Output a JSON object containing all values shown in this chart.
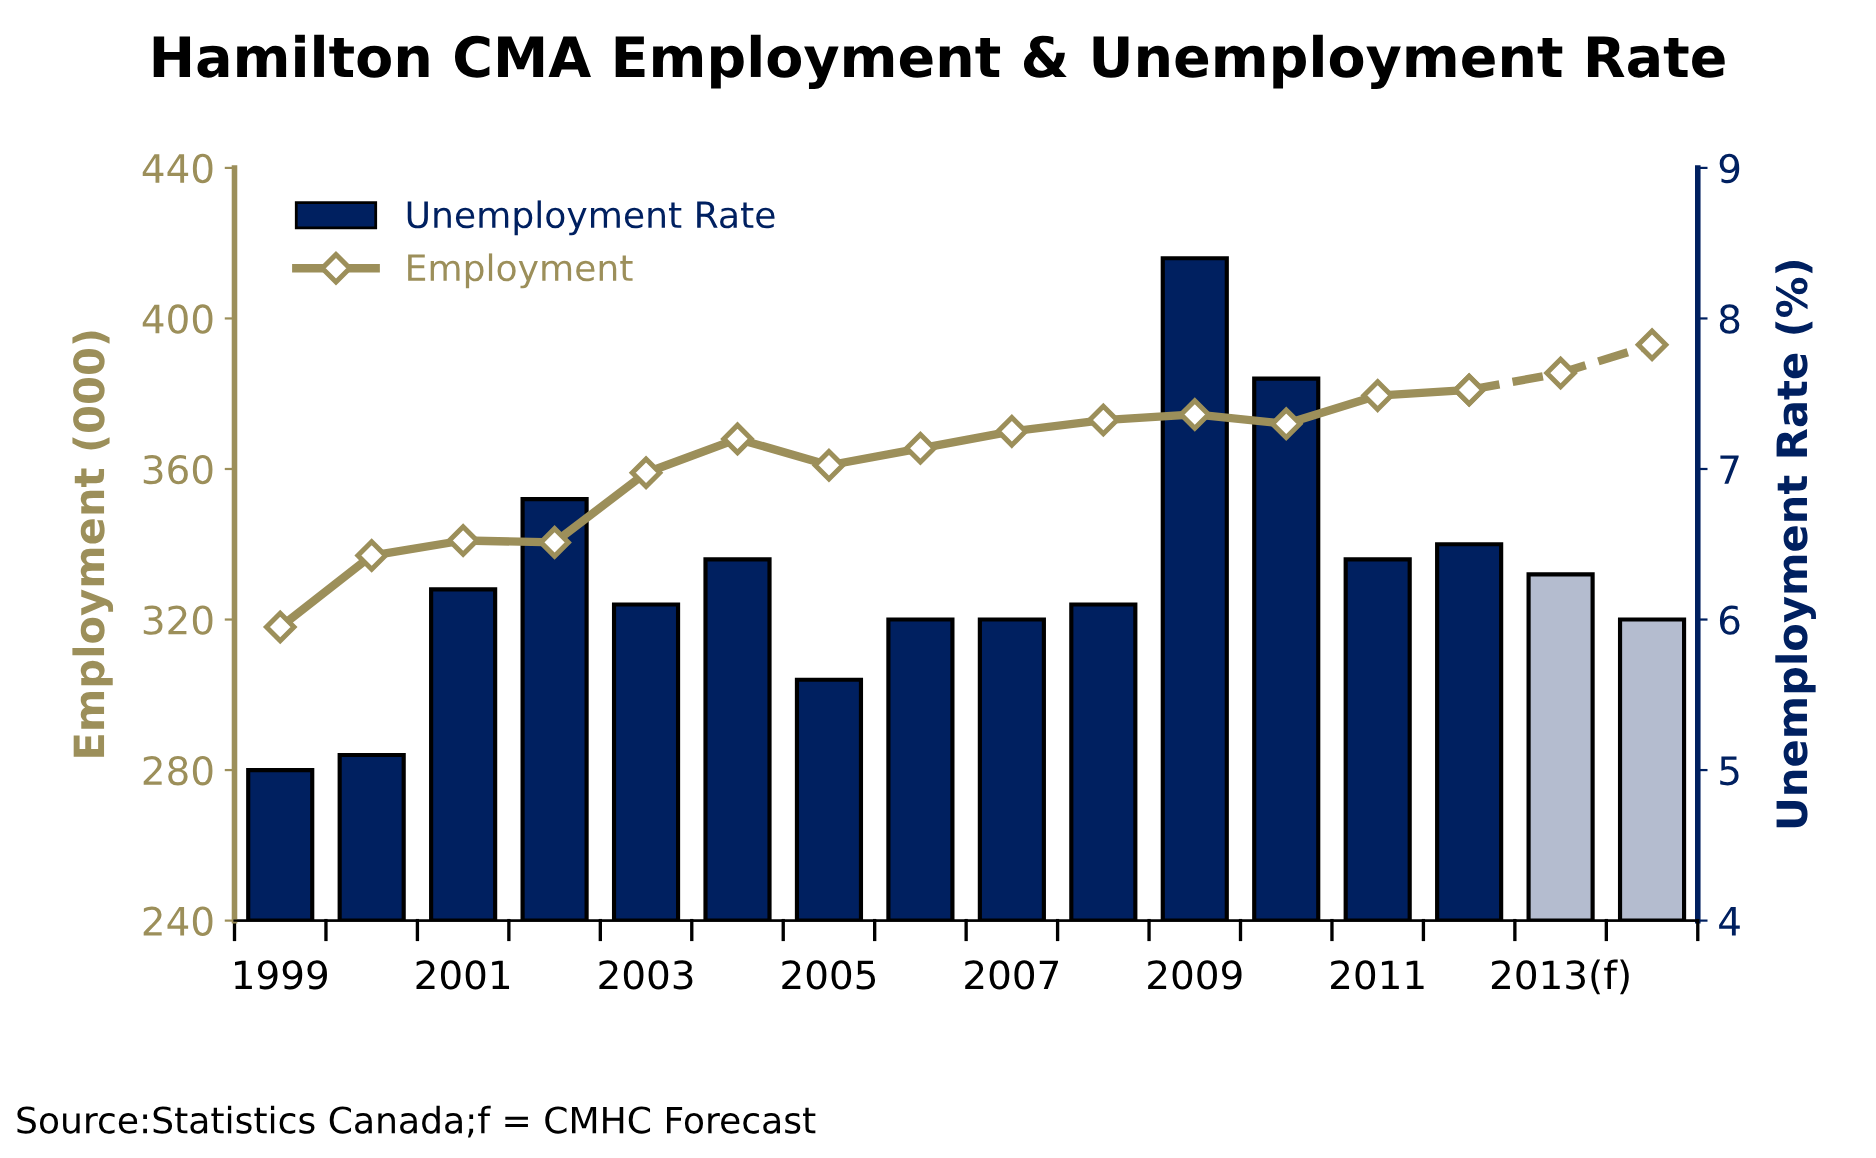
{
  "chart_data": {
    "type": "bar",
    "title": "Hamilton CMA Employment & Unemployment Rate",
    "categories": [
      "1999",
      null,
      "2001",
      null,
      "2003",
      null,
      "2005",
      null,
      "2007",
      null,
      "2009",
      null,
      "2011",
      null,
      "2013(f)",
      null
    ],
    "series": [
      {
        "name": "Unemployment Rate",
        "axis": "y2",
        "color": "#002060",
        "colors": [
          "#002060",
          "#002060",
          "#002060",
          "#002060",
          "#002060",
          "#002060",
          "#002060",
          "#002060",
          "#002060",
          "#002060",
          "#002060",
          "#002060",
          "#002060",
          "#002060",
          "#b4bccf",
          "#b4bccf"
        ],
        "values": [
          5.0,
          5.1,
          6.2,
          6.8,
          6.1,
          6.4,
          5.6,
          6.0,
          6.0,
          6.1,
          8.4,
          7.6,
          6.4,
          6.5,
          6.3,
          6.0
        ]
      },
      {
        "name": "Employment",
        "type": "line",
        "axis": "y",
        "color": "#9c8f5a",
        "marker": "diamond",
        "line_style": "solid",
        "values": [
          318,
          337,
          341,
          340.5,
          359,
          368,
          361,
          365.5,
          370,
          373,
          374.5,
          372,
          379.5,
          381,
          null,
          null
        ]
      },
      {
        "type": "line",
        "axis": "y",
        "color": "#9c8f5a",
        "marker": "diamond",
        "line_style": "dashed",
        "values": [
          null,
          null,
          null,
          null,
          null,
          null,
          null,
          null,
          null,
          null,
          null,
          null,
          null,
          381,
          385.5,
          393
        ]
      }
    ],
    "ylabel": "Employment (000)",
    "y2label": "Unemployment Rate (%)",
    "ylim": [
      240,
      440
    ],
    "yticks": [
      240,
      280,
      320,
      360,
      400,
      440
    ],
    "y2lim": [
      4,
      9
    ],
    "y2ticks": [
      4,
      5,
      6,
      7,
      8,
      9
    ],
    "grid": false,
    "legend": "top left",
    "annotations": [
      "Source:Statistics Canada;f = CMHC Forecast"
    ]
  }
}
